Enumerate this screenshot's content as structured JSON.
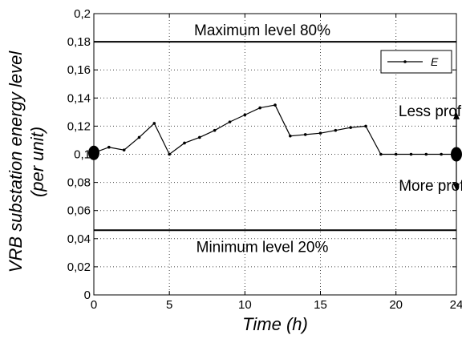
{
  "chart_data": {
    "type": "line",
    "xlabel": "Time (h)",
    "ylabel_line1": "VRB substation energy level",
    "ylabel_line2": "(per unit)",
    "xlim": [
      0,
      24
    ],
    "ylim": [
      0,
      0.2
    ],
    "x_ticks": [
      0,
      5,
      10,
      15,
      20,
      24
    ],
    "x_tick_labels": [
      "0",
      "5",
      "10",
      "15",
      "20",
      "24"
    ],
    "y_ticks": [
      0,
      0.02,
      0.04,
      0.06,
      0.08,
      0.1,
      0.12,
      0.14,
      0.16,
      0.18,
      0.2
    ],
    "y_tick_labels": [
      "0",
      "0,02",
      "0,04",
      "0,06",
      "0,08",
      "0,1",
      "0,12",
      "0,14",
      "0,16",
      "0,18",
      "0,2"
    ],
    "grid": true,
    "legend": {
      "placement": "top-right",
      "entries": [
        "E"
      ]
    },
    "series": [
      {
        "name": "E",
        "x": [
          0,
          1,
          2,
          3,
          4,
          5,
          6,
          7,
          8,
          9,
          10,
          11,
          12,
          13,
          14,
          15,
          16,
          17,
          18,
          19,
          20,
          21,
          22,
          23,
          24
        ],
        "y": [
          0.101,
          0.105,
          0.103,
          0.112,
          0.122,
          0.1,
          0.108,
          0.112,
          0.117,
          0.123,
          0.128,
          0.133,
          0.135,
          0.113,
          0.114,
          0.115,
          0.117,
          0.119,
          0.12,
          0.1,
          0.1,
          0.1,
          0.1,
          0.1,
          0.1
        ]
      }
    ],
    "reference_lines": [
      {
        "y": 0.18,
        "label": "Maximum level 80%"
      },
      {
        "y": 0.046,
        "label": "Minimum level 20%"
      }
    ],
    "annotations": [
      {
        "text": "Less profit",
        "x": 22.5,
        "y": 0.127
      },
      {
        "text": "More profit",
        "x": 22.6,
        "y": 0.074
      }
    ],
    "marker_points": [
      {
        "x": 0,
        "y": 0.101
      },
      {
        "x": 24,
        "y": 0.1
      }
    ],
    "arrows": [
      {
        "x": 24,
        "y_from": 0.1,
        "y_to": 0.13
      },
      {
        "x": 24,
        "y_from": 0.1,
        "y_to": 0.074
      }
    ]
  }
}
